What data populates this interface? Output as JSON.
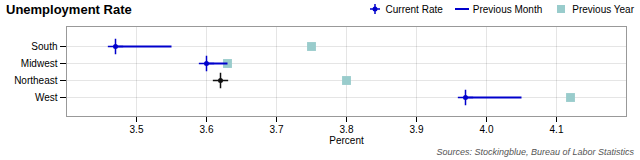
{
  "chart_data": {
    "type": "dot",
    "title": "Unemployment Rate",
    "x_label": "Percent",
    "annotations": [
      "Sources: Stockingblue, Bureau of Labor Statistics"
    ],
    "categories": [
      "South",
      "Midwest",
      "Northeast",
      "West"
    ],
    "series": [
      {
        "name": "Current Rate",
        "type": "dot",
        "marker": "circle_plus",
        "color": "#0000cc",
        "colors": [
          "#0000cc",
          "#0000cc",
          "#111111",
          "#0000cc"
        ],
        "values": [
          3.47,
          3.6,
          3.62,
          3.97
        ]
      },
      {
        "name": "Previous Month",
        "type": "segment",
        "color": "#0000cc",
        "values": [
          3.55,
          3.63,
          null,
          4.05
        ]
      },
      {
        "name": "Previous Year",
        "type": "dot",
        "marker": "square",
        "color": "#99cccc",
        "values": [
          3.75,
          3.63,
          3.8,
          4.12
        ]
      }
    ],
    "xlim": [
      3.4,
      4.2
    ],
    "xticks": [
      3.5,
      3.6,
      3.7,
      3.8,
      3.9,
      {
        "value": 4.0,
        "label": "4.0"
      },
      4.1
    ],
    "grid": true,
    "legend": "upper right"
  }
}
